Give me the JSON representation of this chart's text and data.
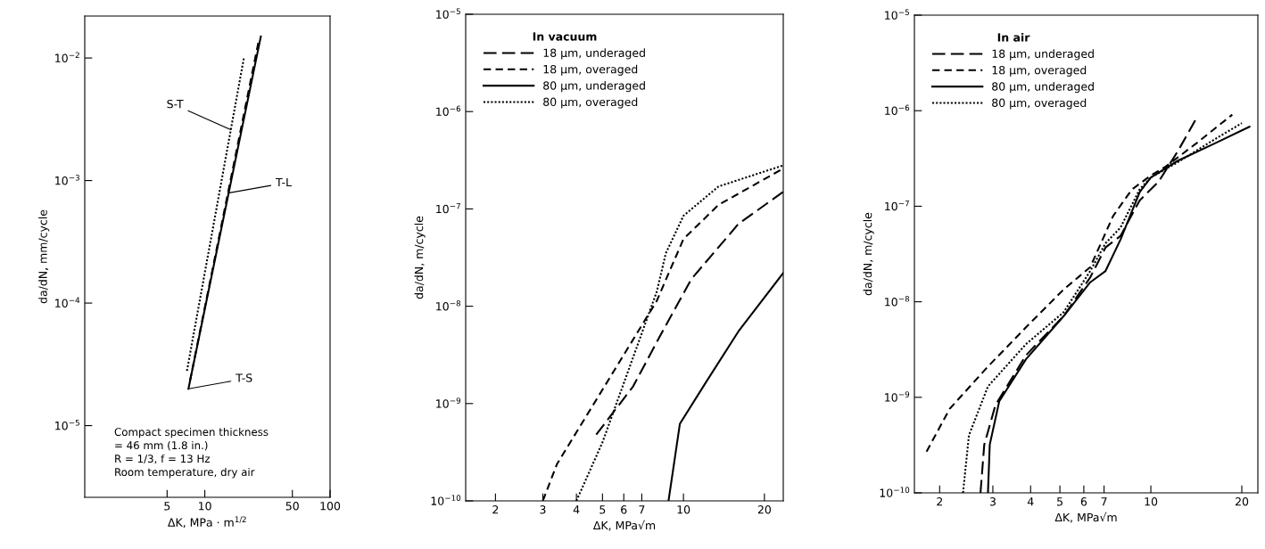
{
  "chart_data": [
    {
      "type": "line",
      "log": "xy",
      "xlabel": "ΔK, MPa · m$^{1/2}$",
      "ylabel": "da/dN, mm/cycle",
      "xlim": [
        1.1,
        100
      ],
      "ylim": [
        2.6e-06,
        0.022
      ],
      "xticks": [
        5,
        10,
        50,
        100
      ],
      "yticks": [
        {
          "value": 1e-05,
          "label": "10$^{−5}$"
        },
        {
          "value": 0.0001,
          "label": "10$^{−4}$"
        },
        {
          "value": 0.001,
          "label": "10$^{−3}$"
        },
        {
          "value": 0.01,
          "label": "10$^{−2}$"
        }
      ],
      "series": [
        {
          "color": "#000000",
          "line_style": "dotted",
          "x": [
            7.2,
            20.5
          ],
          "values": [
            2.8e-05,
            0.01
          ]
        },
        {
          "color": "#000000",
          "line_style": "dashed",
          "x": [
            7.6,
            27
          ],
          "values": [
            2.3e-05,
            0.014
          ]
        },
        {
          "color": "#000000",
          "line_style": "solid",
          "x": [
            7.4,
            28
          ],
          "values": [
            2e-05,
            0.015
          ]
        }
      ],
      "annotations": [
        {
          "text": "S-T",
          "x": 16.1,
          "y": 0.0026
        },
        {
          "text": "T-L",
          "x": 15.3,
          "y": 0.00079
        },
        {
          "text": "T-S",
          "x": 7.4,
          "y": 2e-05
        },
        "Compact specimen thickness\n= 46 mm (1.8 in.)\nR = 1/3, f = 13 Hz\nRoom temperature, dry air"
      ]
    },
    {
      "type": "line",
      "log": "xy",
      "xlabel": "ΔK, MPa√m",
      "ylabel": "da/dN, m/cycle",
      "xlim": [
        1.55,
        23.5
      ],
      "ylim": [
        1e-10,
        1e-05
      ],
      "xticks": [
        2,
        3,
        4,
        5,
        6,
        7,
        10,
        20
      ],
      "yticks": [
        {
          "value": 1e-10,
          "label": "10$^{−10}$"
        },
        {
          "value": 1e-09,
          "label": "10$^{−9}$"
        },
        {
          "value": 1e-08,
          "label": "10$^{−8}$"
        },
        {
          "value": 1e-07,
          "label": "10$^{−7}$"
        },
        {
          "value": 1e-06,
          "label": "10$^{−6}$"
        },
        {
          "value": 1e-05,
          "label": "10$^{−5}$"
        }
      ],
      "legend": "top left",
      "legend_title": "In vacuum",
      "series": [
        {
          "name": "18 µm, underaged",
          "color": "#000000",
          "line_style": "long dashed",
          "x": [
            4.74,
            6.5,
            8.2,
            10.7,
            16,
            23.5
          ],
          "values": [
            4.8e-10,
            1.5e-09,
            5e-09,
            1.9e-08,
            7e-08,
            1.5e-07
          ]
        },
        {
          "name": "18 µm, overaged",
          "color": "#000000",
          "line_style": "dashed",
          "x": [
            3,
            3.39,
            7.95,
            10,
            13.5,
            23.5
          ],
          "values": [
            1e-10,
            2.4e-10,
            1.13e-08,
            4.9e-08,
            1.1e-07,
            2.6e-07
          ]
        },
        {
          "name": "80 µm, underaged",
          "color": "#000000",
          "line_style": "solid",
          "x": [
            8.8,
            9.7,
            12.2,
            16,
            23.5
          ],
          "values": [
            1e-10,
            6.2e-10,
            1.7e-09,
            5.5e-09,
            2.2e-08
          ]
        },
        {
          "name": "80 µm, overaged",
          "color": "#000000",
          "line_style": "dotted",
          "x": [
            4,
            5,
            7.95,
            8.6,
            10,
            13.5,
            23.5
          ],
          "values": [
            1e-10,
            4e-10,
            1.4e-08,
            3.5e-08,
            8.5e-08,
            1.7e-07,
            2.8e-07
          ]
        }
      ]
    },
    {
      "type": "line",
      "log": "xy",
      "xlabel": "ΔK, MPa√m",
      "ylabel": "da/dN, m/cycle",
      "xlim": [
        1.65,
        22.6
      ],
      "ylim": [
        1e-10,
        1e-05
      ],
      "xticks": [
        2,
        3,
        4,
        5,
        6,
        7,
        10,
        20
      ],
      "yticks": [
        {
          "value": 1e-10,
          "label": "10$^{−10}$"
        },
        {
          "value": 1e-09,
          "label": "10$^{−9}$"
        },
        {
          "value": 1e-08,
          "label": "10$^{−8}$"
        },
        {
          "value": 1e-07,
          "label": "10$^{−7}$"
        },
        {
          "value": 1e-06,
          "label": "10$^{−6}$"
        },
        {
          "value": 1e-05,
          "label": "10$^{−5}$"
        }
      ],
      "legend": "top left",
      "legend_title": "In air",
      "series": [
        {
          "name": "18 µm, underaged",
          "color": "#000000",
          "line_style": "long dashed",
          "x": [
            2.73,
            2.81,
            3.06,
            3.86,
            5.15,
            6.3,
            7.08,
            7.94,
            9.18,
            10.6,
            12.3,
            14.2
          ],
          "values": [
            1e-10,
            3.2e-10,
            8.3e-10,
            2.75e-09,
            7.1e-09,
            1.8e-08,
            3.7e-08,
            4.9e-08,
            1.15e-07,
            1.8e-07,
            3.8e-07,
            8.5e-07
          ]
        },
        {
          "name": "18 µm, overaged",
          "color": "#000000",
          "line_style": "dashed",
          "x": [
            1.81,
            2.16,
            2.89,
            3.86,
            5.15,
            6.3,
            7.5,
            8.66,
            10,
            11.2,
            14.2,
            18.6
          ],
          "values": [
            2.7e-10,
            7.6e-10,
            2.1e-09,
            5.4e-09,
            1.35e-08,
            2.3e-08,
            7.9e-08,
            1.5e-07,
            2.1e-07,
            2.6e-07,
            4.6e-07,
            9.1e-07
          ]
        },
        {
          "name": "80 µm, underaged",
          "color": "#000000",
          "line_style": "solid",
          "x": [
            2.89,
            2.93,
            3.15,
            3.86,
            5.15,
            6.3,
            7.08,
            7.94,
            9.18,
            10,
            12.3,
            16.4,
            21.2
          ],
          "values": [
            1e-10,
            3.2e-10,
            9.1e-10,
            2.5e-09,
            7.1e-09,
            1.6e-08,
            2.1e-08,
            4.5e-08,
            1.4e-07,
            2e-07,
            3e-07,
            4.6e-07,
            6.8e-07
          ]
        },
        {
          "name": "80 µm, overaged",
          "color": "#000000",
          "line_style": "dotted",
          "x": [
            2.39,
            2.5,
            2.89,
            3.86,
            5.15,
            6.3,
            7.08,
            7.94,
            9.18,
            10,
            12.3,
            16.4,
            20.0
          ],
          "values": [
            1e-10,
            4e-10,
            1.3e-09,
            3.6e-09,
            7.8e-09,
            2.1e-08,
            4.1e-08,
            6e-08,
            1.5e-07,
            2e-07,
            2.9e-07,
            5.1e-07,
            7.4e-07
          ]
        }
      ]
    }
  ]
}
